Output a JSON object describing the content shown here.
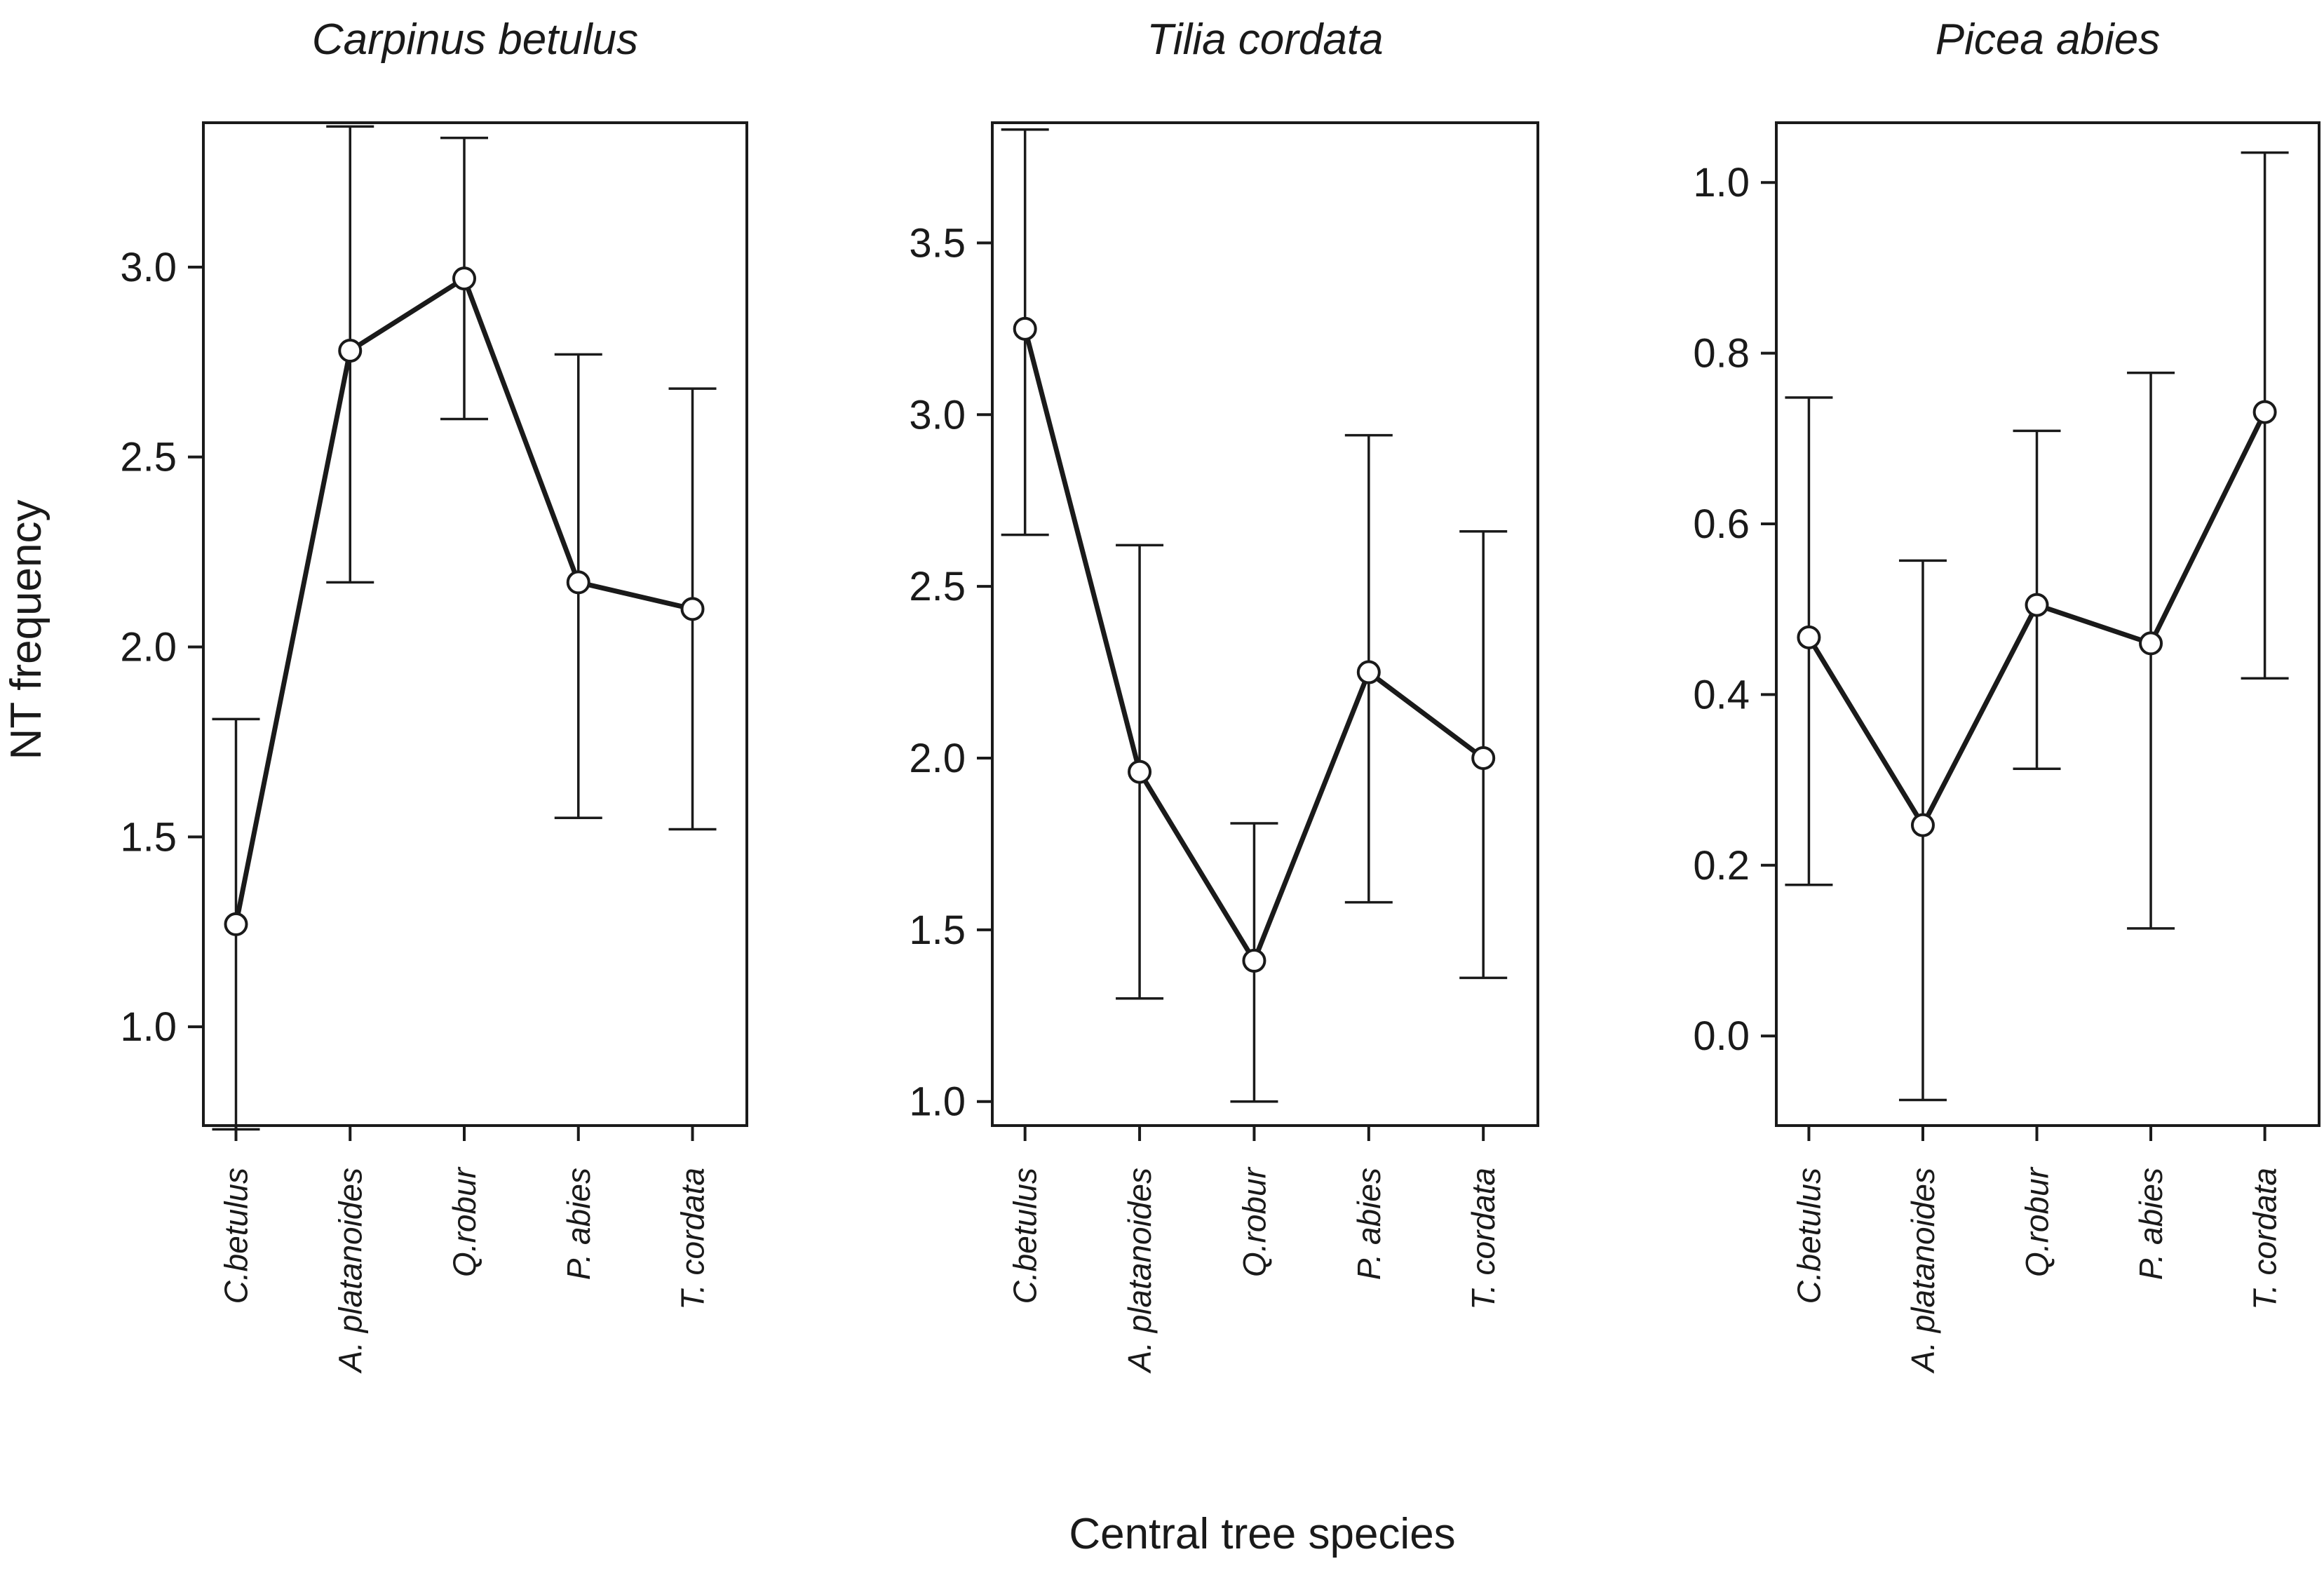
{
  "chart_data": {
    "type": "line",
    "xlabel": "Central tree species",
    "ylabel": "NT frequency",
    "categories": [
      "C.betulus",
      "A. platanoides",
      "Q.robur",
      "P. abies",
      "T. cordata"
    ],
    "panels": [
      {
        "title": "Carpinus betulus",
        "ylim": [
          0.74,
          3.38
        ],
        "yticks": [
          1.0,
          1.5,
          2.0,
          2.5,
          3.0
        ],
        "ytick_labels": [
          "1.0",
          "1.5",
          "2.0",
          "2.5",
          "3.0"
        ],
        "mean": [
          1.27,
          2.78,
          2.97,
          2.17,
          2.1
        ],
        "lower": [
          0.73,
          2.17,
          2.6,
          1.55,
          1.52
        ],
        "upper": [
          1.81,
          3.37,
          3.34,
          2.77,
          2.68
        ]
      },
      {
        "title": "Tilia cordata",
        "ylim": [
          0.93,
          3.85
        ],
        "yticks": [
          1.0,
          1.5,
          2.0,
          2.5,
          3.0,
          3.5
        ],
        "ytick_labels": [
          "1.0",
          "1.5",
          "2.0",
          "2.5",
          "3.0",
          "3.5"
        ],
        "mean": [
          3.25,
          1.96,
          1.41,
          2.25,
          2.0
        ],
        "lower": [
          2.65,
          1.3,
          1.0,
          1.58,
          1.36
        ],
        "upper": [
          3.83,
          2.62,
          1.81,
          2.94,
          2.66
        ]
      },
      {
        "title": "Picea abies",
        "ylim": [
          -0.105,
          1.07
        ],
        "yticks": [
          0.0,
          0.2,
          0.4,
          0.6,
          0.8,
          1.0
        ],
        "ytick_labels": [
          "0.0",
          "0.2",
          "0.4",
          "0.6",
          "0.8",
          "1.0"
        ],
        "mean": [
          0.467,
          0.247,
          0.505,
          0.46,
          0.731
        ],
        "lower": [
          0.177,
          -0.075,
          0.313,
          0.126,
          0.419
        ],
        "upper": [
          0.748,
          0.557,
          0.709,
          0.777,
          1.035
        ]
      }
    ]
  }
}
